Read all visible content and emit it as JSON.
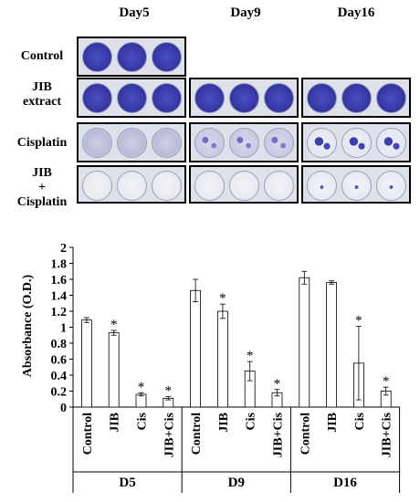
{
  "panel_a": {
    "day_labels": [
      "Day5",
      "Day9",
      "Day16"
    ],
    "row_labels": [
      [
        "Control"
      ],
      [
        "JIB",
        "extract"
      ],
      [
        "Cisplatin"
      ],
      [
        "JIB",
        "+",
        "Cisplatin"
      ]
    ],
    "plates": [
      [
        "dense",
        null,
        null
      ],
      [
        "dense",
        "dense",
        "dense"
      ],
      [
        "faint",
        "sparse",
        "colonies"
      ],
      [
        "clear",
        "clear",
        "few"
      ]
    ],
    "colors": {
      "stain": "#4a4fc0",
      "stain_dark": "#2e2f9a",
      "plate_bg": "#dfe1ea",
      "well_clear": "#f2f2f6"
    }
  },
  "chart_data": {
    "type": "bar",
    "ylabel": "Absorbance (O.D.)",
    "ylim": [
      0,
      2
    ],
    "yticks": [
      "0",
      "0.2",
      "0.4",
      "0.6",
      "0.8",
      "1",
      "1.2",
      "1.4",
      "1.6",
      "1.8",
      "2"
    ],
    "groups": [
      {
        "name": "D5",
        "categories": [
          "Control",
          "JIB",
          "Cis",
          "JIB+Cis"
        ],
        "values": [
          1.09,
          0.93,
          0.16,
          0.11
        ],
        "errors": [
          0.03,
          0.03,
          0.02,
          0.02
        ],
        "significant": [
          false,
          true,
          true,
          true
        ]
      },
      {
        "name": "D9",
        "categories": [
          "Control",
          "JIB",
          "Cis",
          "JIB+Cis"
        ],
        "values": [
          1.46,
          1.2,
          0.45,
          0.18
        ],
        "errors": [
          0.14,
          0.09,
          0.12,
          0.04
        ],
        "significant": [
          false,
          true,
          true,
          true
        ]
      },
      {
        "name": "D16",
        "categories": [
          "Control",
          "JIB",
          "Cis",
          "JIB+Cis"
        ],
        "values": [
          1.62,
          1.56,
          0.55,
          0.2
        ],
        "errors": [
          0.08,
          0.02,
          0.46,
          0.05
        ],
        "significant": [
          false,
          false,
          true,
          true
        ]
      }
    ],
    "significance_marker": "*",
    "legend": "none",
    "grid": false,
    "bar_fill": "#ffffff",
    "bar_stroke": "#000000"
  }
}
